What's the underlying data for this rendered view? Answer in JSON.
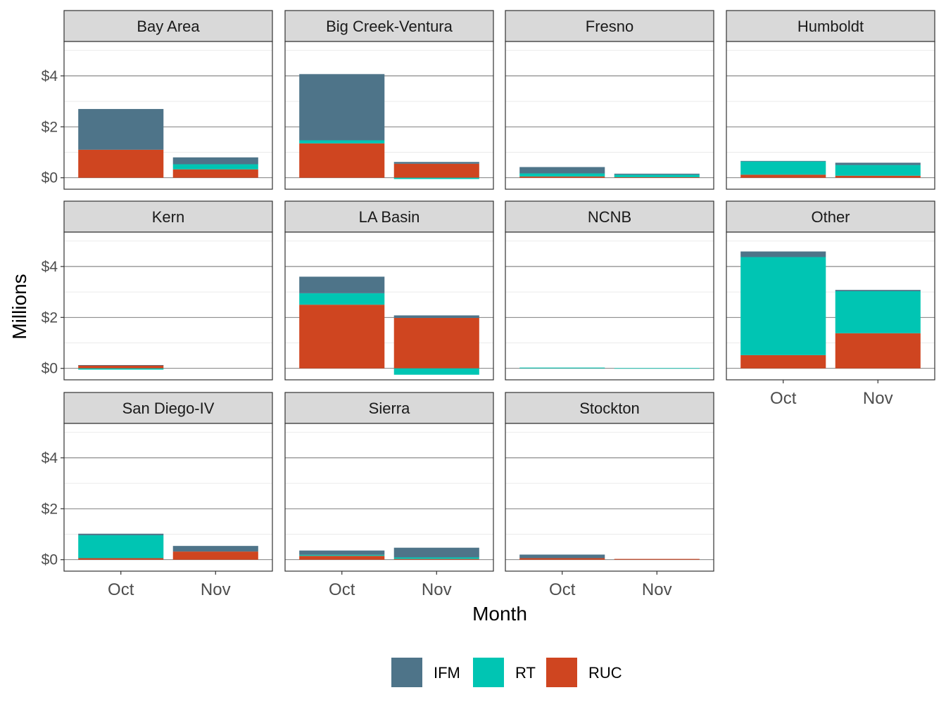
{
  "chart_data": {
    "type": "bar",
    "stacked": true,
    "facet_layout": "wrap-4-columns",
    "xlabel": "Month",
    "ylabel": "Millions",
    "categories": [
      "Oct",
      "Nov"
    ],
    "y_tick_values": [
      0,
      2,
      4
    ],
    "y_tick_labels": [
      "$0",
      "$2",
      "$4"
    ],
    "ylim": [
      -0.45,
      5.35
    ],
    "grid": true,
    "legend_position": "bottom",
    "series": [
      {
        "name": "IFM",
        "color": "#4e7489"
      },
      {
        "name": "RT",
        "color": "#00c5b3"
      },
      {
        "name": "RUC",
        "color": "#cf4520"
      }
    ],
    "panels": [
      {
        "name": "Bay Area",
        "values": {
          "IFM": [
            1.6,
            0.27
          ],
          "RT": [
            0.0,
            0.2
          ],
          "RUC": [
            1.1,
            0.33
          ]
        }
      },
      {
        "name": "Big Creek-Ventura",
        "values": {
          "IFM": [
            2.6,
            0.07
          ],
          "RT": [
            0.12,
            -0.05
          ],
          "RUC": [
            1.35,
            0.55
          ]
        }
      },
      {
        "name": "Fresno",
        "values": {
          "IFM": [
            0.25,
            0.04
          ],
          "RT": [
            0.12,
            0.1
          ],
          "RUC": [
            0.05,
            0.02
          ]
        }
      },
      {
        "name": "Humboldt",
        "values": {
          "IFM": [
            0.02,
            0.09
          ],
          "RT": [
            0.52,
            0.42
          ],
          "RUC": [
            0.12,
            0.08
          ]
        }
      },
      {
        "name": "Kern",
        "values": {
          "IFM": [
            0.01,
            0.0
          ],
          "RT": [
            -0.05,
            0.0
          ],
          "RUC": [
            0.12,
            0.0
          ]
        }
      },
      {
        "name": "LA Basin",
        "values": {
          "IFM": [
            0.65,
            0.1
          ],
          "RT": [
            0.45,
            -0.25
          ],
          "RUC": [
            2.5,
            1.98
          ]
        }
      },
      {
        "name": "NCNB",
        "values": {
          "IFM": [
            0.0,
            0.0
          ],
          "RT": [
            0.03,
            0.01
          ],
          "RUC": [
            0.0,
            0.0
          ]
        }
      },
      {
        "name": "Other",
        "values": {
          "IFM": [
            0.22,
            0.05
          ],
          "RT": [
            3.85,
            1.65
          ],
          "RUC": [
            0.52,
            1.38
          ]
        }
      },
      {
        "name": "San Diego-IV",
        "values": {
          "IFM": [
            0.06,
            0.22
          ],
          "RT": [
            0.9,
            0.0
          ],
          "RUC": [
            0.06,
            0.32
          ]
        }
      },
      {
        "name": "Sierra",
        "values": {
          "IFM": [
            0.17,
            0.38
          ],
          "RT": [
            0.04,
            0.06
          ],
          "RUC": [
            0.15,
            0.03
          ]
        }
      },
      {
        "name": "Stockton",
        "values": {
          "IFM": [
            0.14,
            0.0
          ],
          "RT": [
            0.0,
            0.0
          ],
          "RUC": [
            0.06,
            0.03
          ]
        }
      }
    ]
  }
}
